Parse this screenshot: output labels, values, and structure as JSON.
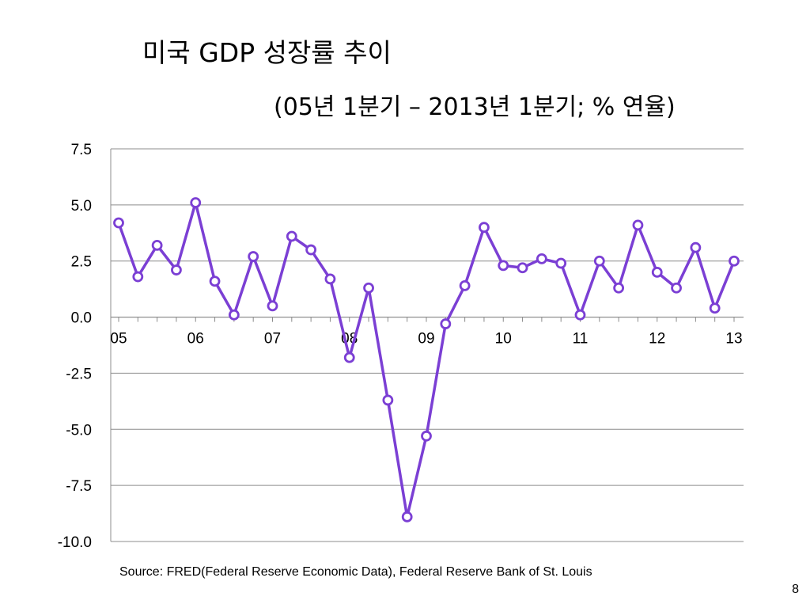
{
  "slide": {
    "title": "미국 GDP 성장률 추이",
    "subtitle": "(05년 1분기 – 2013년 1분기; % 연율)",
    "source": "Source:  FRED(Federal Reserve Economic Data), Federal Reserve Bank of St. Louis",
    "page_number": "8"
  },
  "chart_data": {
    "type": "line",
    "title": "미국 GDP 성장률 추이",
    "subtitle": "(05년 1분기 – 2013년 1분기; % 연율)",
    "xlabel": "",
    "ylabel": "",
    "x_tick_labels": [
      "05",
      "06",
      "07",
      "08",
      "09",
      "10",
      "11",
      "12",
      "13"
    ],
    "y_tick_labels": [
      "7.5",
      "5.0",
      "2.5",
      "0.0",
      "-2.5",
      "-5.0",
      "-7.5",
      "-10.0"
    ],
    "ylim": [
      -10.0,
      7.5
    ],
    "y_step": 2.5,
    "grid": "horizontal",
    "legend": "none",
    "marker": "hollow-circle",
    "colors": {
      "series": "#7B3FD4",
      "grid": "#8C8C8C",
      "axis": "#8C8C8C",
      "marker_fill": "#FFFFFF"
    },
    "x": [
      "2005Q1",
      "2005Q2",
      "2005Q3",
      "2005Q4",
      "2006Q1",
      "2006Q2",
      "2006Q3",
      "2006Q4",
      "2007Q1",
      "2007Q2",
      "2007Q3",
      "2007Q4",
      "2008Q1",
      "2008Q2",
      "2008Q3",
      "2008Q4",
      "2009Q1",
      "2009Q2",
      "2009Q3",
      "2009Q4",
      "2010Q1",
      "2010Q2",
      "2010Q3",
      "2010Q4",
      "2011Q1",
      "2011Q2",
      "2011Q3",
      "2011Q4",
      "2012Q1",
      "2012Q2",
      "2012Q3",
      "2012Q4",
      "2013Q1"
    ],
    "series": [
      {
        "values": [
          4.2,
          1.8,
          3.2,
          2.1,
          5.1,
          1.6,
          0.1,
          2.7,
          0.5,
          3.6,
          3.0,
          1.7,
          -1.8,
          1.3,
          -3.7,
          -8.9,
          -5.3,
          -0.3,
          1.4,
          4.0,
          2.3,
          2.2,
          2.6,
          2.4,
          0.1,
          2.5,
          1.3,
          4.1,
          2.0,
          1.3,
          3.1,
          0.4,
          2.5
        ]
      }
    ]
  }
}
